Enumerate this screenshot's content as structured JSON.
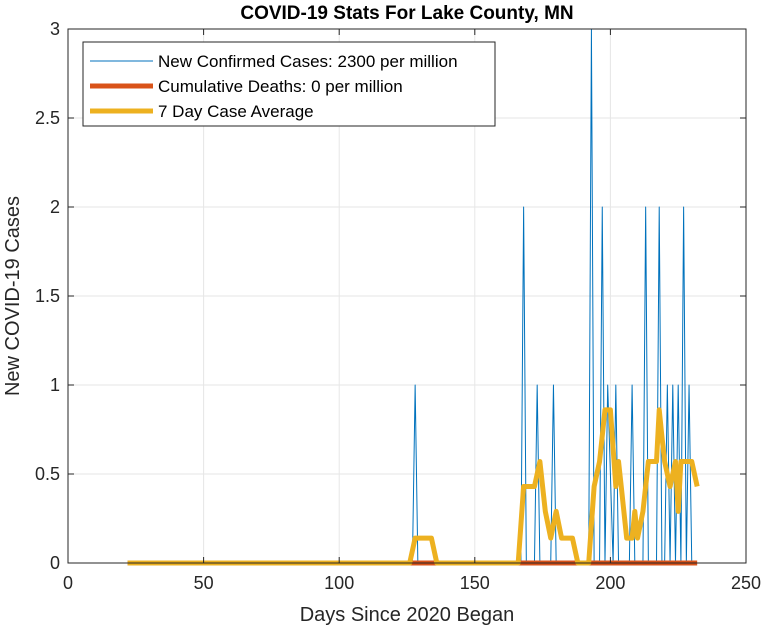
{
  "chart_data": {
    "type": "line",
    "title": "COVID-19 Stats For Lake County, MN",
    "xlabel": "Days Since 2020 Began",
    "ylabel": "New COVID-19 Cases",
    "xlim": [
      0,
      250
    ],
    "ylim": [
      0,
      3
    ],
    "xticks": [
      0,
      50,
      100,
      150,
      200,
      250
    ],
    "yticks": [
      0,
      0.5,
      1,
      1.5,
      2,
      2.5,
      3
    ],
    "xtick_labels": [
      "0",
      "50",
      "100",
      "150",
      "200",
      "250"
    ],
    "ytick_labels": [
      "0",
      "0.5",
      "1",
      "1.5",
      "2",
      "2.5",
      "3"
    ],
    "grid": true,
    "legend_position": "top-left",
    "series": [
      {
        "name": "New Confirmed Cases: 2300 per million",
        "color": "#0072BD",
        "line": "thin",
        "x": [
          22,
          127,
          128,
          129,
          167,
          168,
          169,
          170,
          172,
          173,
          174,
          175,
          178,
          179,
          180,
          181,
          192,
          193,
          194,
          195,
          196,
          197,
          198,
          199,
          201,
          202,
          203,
          204,
          207,
          208,
          209,
          210,
          212,
          213,
          214,
          215,
          217,
          218,
          219,
          220,
          221,
          222,
          223,
          224,
          225,
          226,
          227,
          228,
          229,
          230,
          232
        ],
        "y": [
          0,
          0,
          1,
          0,
          0,
          2,
          0,
          0,
          0,
          1,
          0,
          0,
          0,
          1,
          0,
          0,
          0,
          3,
          0,
          0,
          0,
          2,
          0,
          1,
          0,
          1,
          0,
          0,
          0,
          1,
          0,
          0,
          0,
          2,
          0,
          0,
          0,
          2,
          0,
          0,
          1,
          0,
          1,
          0,
          1,
          0,
          2,
          0,
          1,
          0,
          0
        ]
      },
      {
        "name": "Cumulative Deaths: 0 per million",
        "color": "#D95319",
        "line": "thick",
        "x": [
          22,
          232
        ],
        "y": [
          0,
          0
        ]
      },
      {
        "name": "7 Day Case Average",
        "color": "#EDB120",
        "line": "thick",
        "x": [
          22,
          126,
          128,
          134,
          136,
          166,
          168,
          172,
          174,
          176,
          178,
          180,
          182,
          186,
          188,
          192,
          194,
          196,
          198,
          200,
          202,
          203,
          204,
          206,
          208,
          209,
          210,
          212,
          214,
          216,
          217,
          218,
          219,
          220,
          222,
          224,
          225,
          226,
          228,
          230,
          232
        ],
        "y": [
          0,
          0,
          0.14,
          0.14,
          0,
          0,
          0.43,
          0.43,
          0.57,
          0.29,
          0.14,
          0.29,
          0.14,
          0.14,
          0,
          0,
          0.43,
          0.57,
          0.86,
          0.86,
          0.43,
          0.57,
          0.43,
          0.14,
          0.14,
          0.29,
          0.14,
          0.29,
          0.57,
          0.57,
          0.57,
          0.86,
          0.71,
          0.57,
          0.43,
          0.57,
          0.29,
          0.57,
          0.57,
          0.57,
          0.43
        ]
      }
    ]
  }
}
